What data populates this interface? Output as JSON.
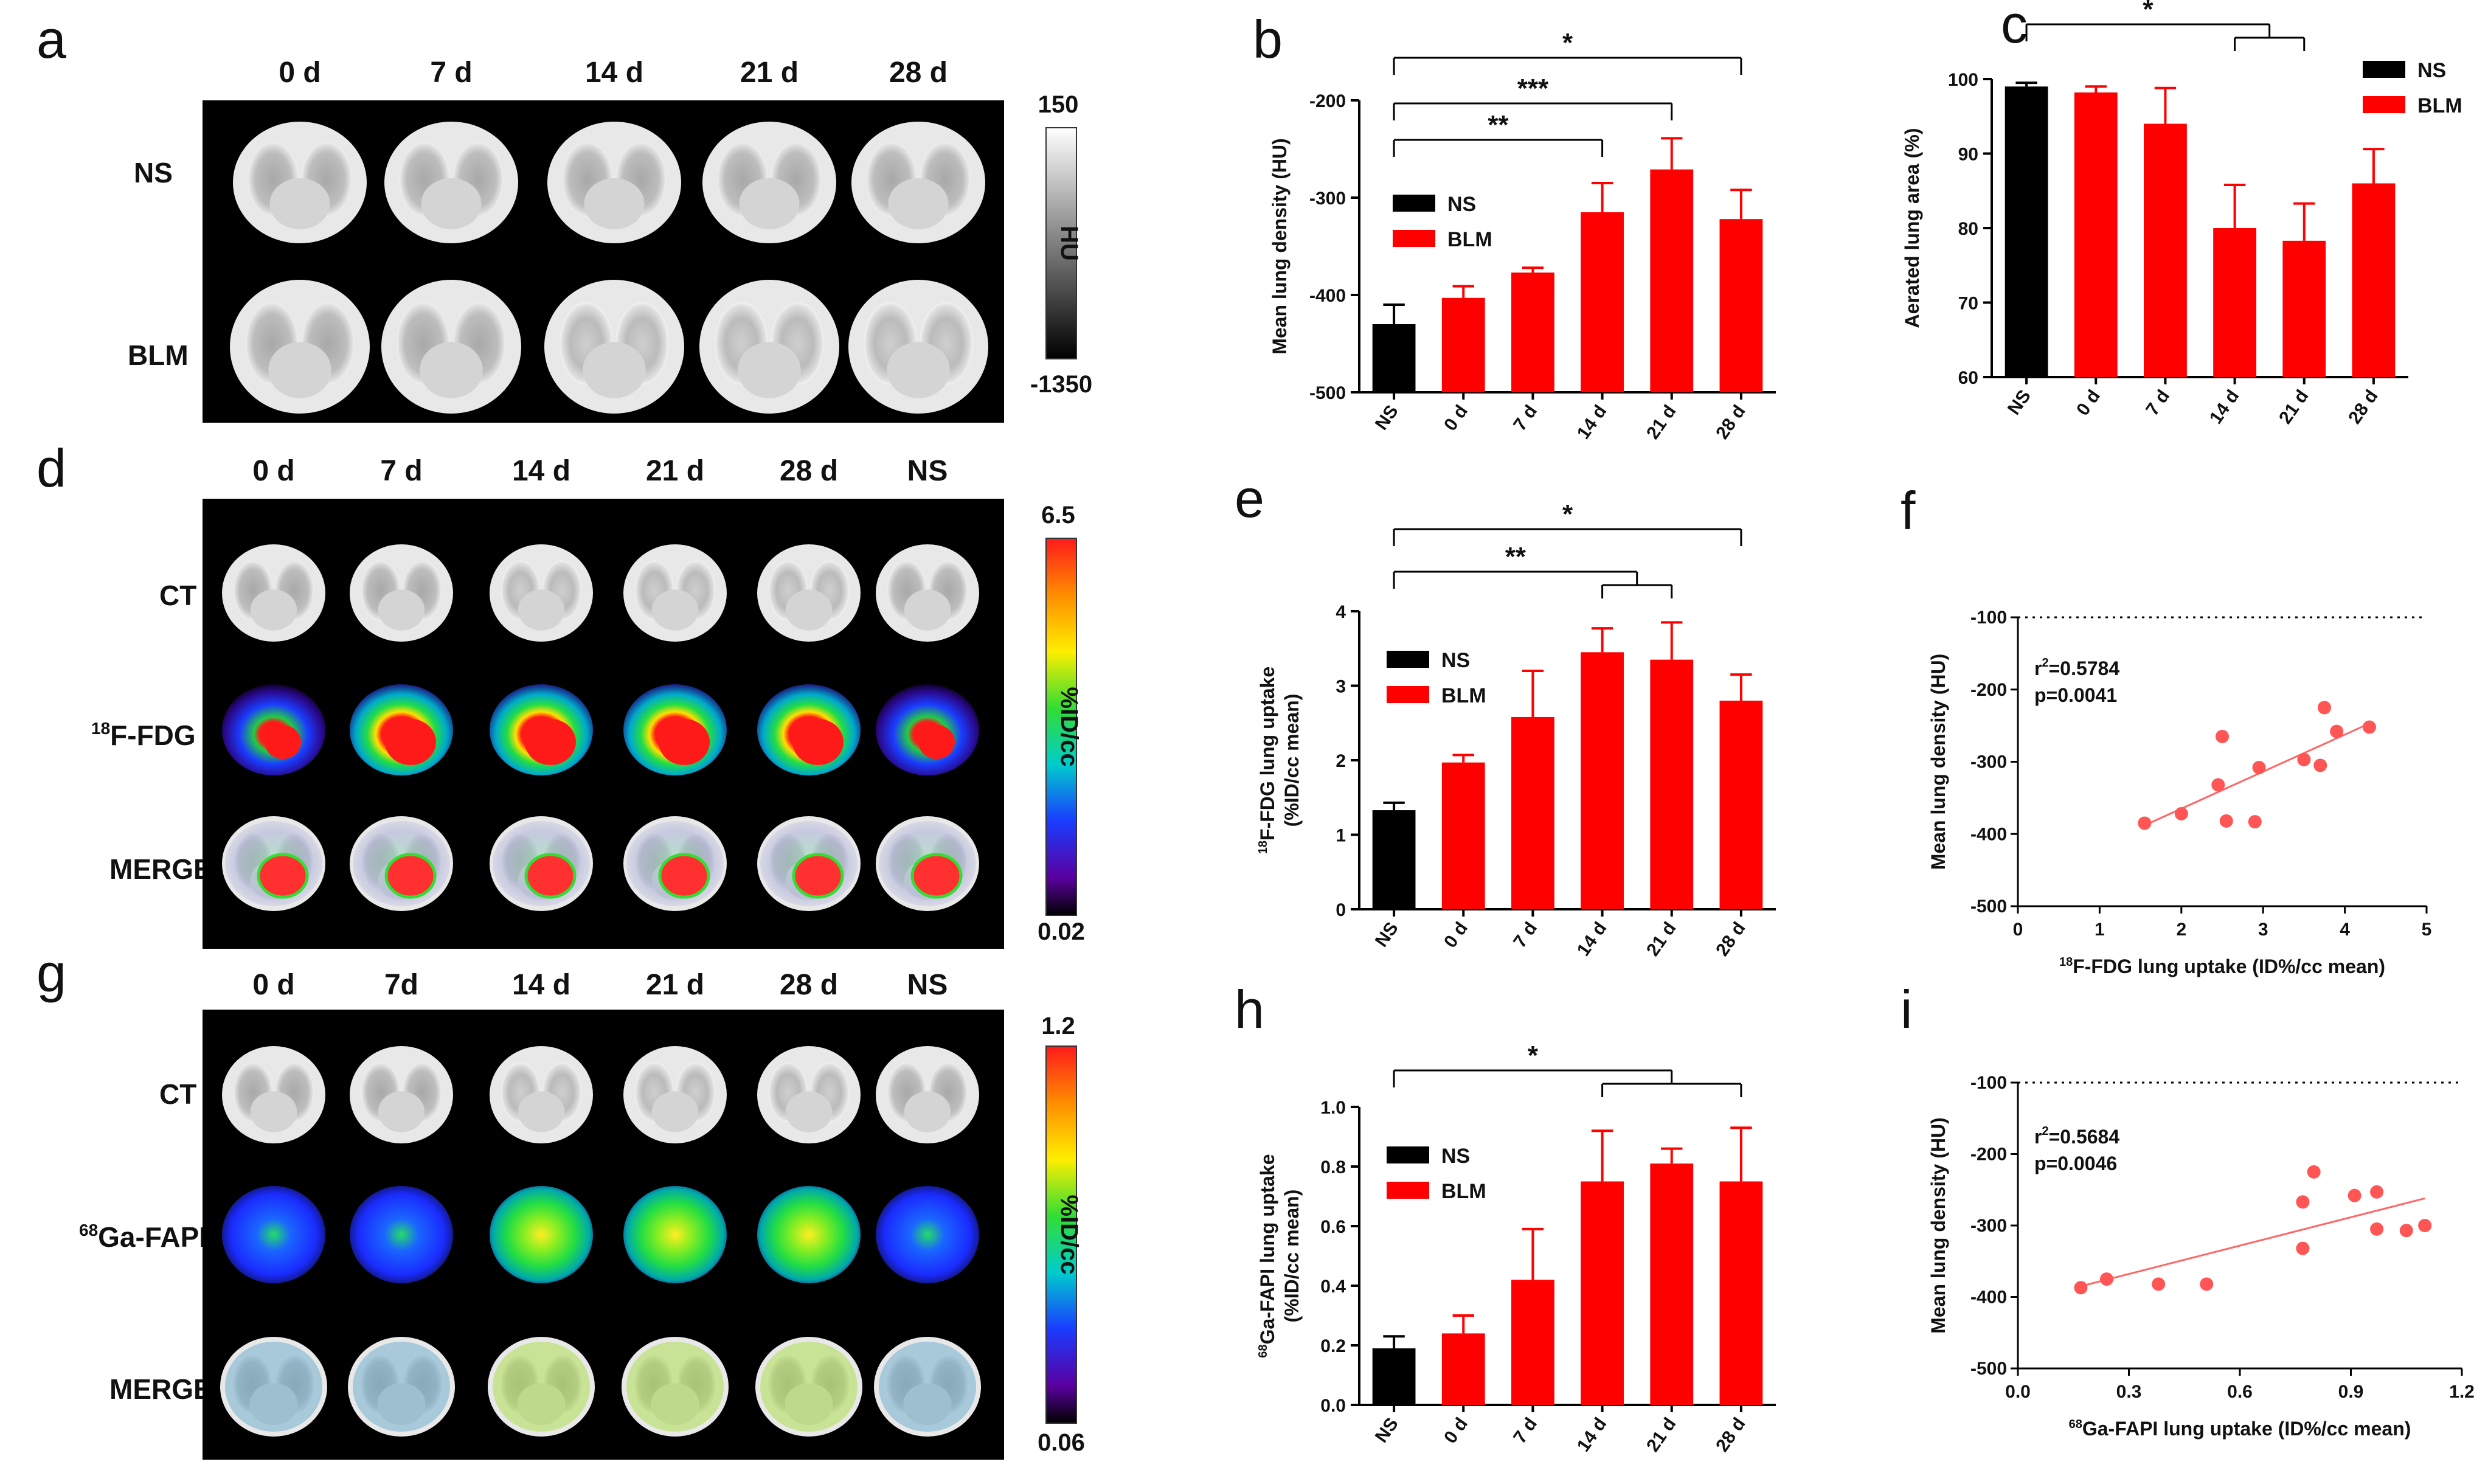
{
  "panel_letters": [
    "a",
    "b",
    "c",
    "d",
    "e",
    "f",
    "g",
    "h",
    "i"
  ],
  "colors": {
    "ns": "#000000",
    "blm": "#ff0000",
    "dot": "#ff5555",
    "fit": "#ff6666"
  },
  "panel_a": {
    "columns": [
      "0 d",
      "7 d",
      "14 d",
      "21 d",
      "28 d"
    ],
    "rows": [
      "NS",
      "BLM"
    ],
    "colorbar": {
      "max": "150",
      "min": "-1350",
      "unit": "HU"
    }
  },
  "panel_d": {
    "columns": [
      "0 d",
      "7 d",
      "14 d",
      "21 d",
      "28 d",
      "NS"
    ],
    "rows": [
      {
        "sup": "",
        "text": "CT"
      },
      {
        "sup": "18",
        "text": "F-FDG"
      },
      {
        "sup": "",
        "text": "MERGE"
      }
    ],
    "colorbar": {
      "max": "6.5",
      "min": "0.02",
      "unit": "%ID/cc"
    }
  },
  "panel_g": {
    "columns": [
      "0 d",
      "7d",
      "14 d",
      "21 d",
      "28 d",
      "NS"
    ],
    "rows": [
      {
        "sup": "",
        "text": "CT"
      },
      {
        "sup": "68",
        "text": "Ga-FAPI"
      },
      {
        "sup": "",
        "text": "MERGE"
      }
    ],
    "colorbar": {
      "max": "1.2",
      "min": "0.06",
      "unit": "%ID/cc"
    }
  },
  "chart_data": [
    {
      "id": "b",
      "type": "bar",
      "categories": [
        "NS",
        "0 d",
        "7 d",
        "14 d",
        "21 d",
        "28 d"
      ],
      "values": [
        -430,
        -403,
        -377,
        -315,
        -271,
        -322
      ],
      "errors": [
        20,
        12,
        5,
        30,
        32,
        30
      ],
      "groups": [
        "NS",
        "BLM",
        "BLM",
        "BLM",
        "BLM",
        "BLM"
      ],
      "ylabel": {
        "sup": "",
        "text": "Mean lung density (HU)",
        "sub": ""
      },
      "ylim": [
        -500,
        -200
      ],
      "yticks": [
        -500,
        -400,
        -300,
        -200
      ],
      "ytick_labels": [
        "-500",
        "-400",
        "-300",
        "-200"
      ],
      "legend": [
        "NS",
        "BLM"
      ],
      "significance": [
        {
          "label": "**",
          "from": 0,
          "to": 3
        },
        {
          "label": "***",
          "from": 0,
          "to": 4
        },
        {
          "label": "*",
          "from": 0,
          "to": 5
        }
      ]
    },
    {
      "id": "c",
      "type": "bar",
      "categories": [
        "NS",
        "0 d",
        "7 d",
        "14 d",
        "21 d",
        "28 d"
      ],
      "values": [
        99,
        98.2,
        94,
        80,
        78.3,
        86
      ],
      "errors": [
        0.5,
        0.8,
        4.8,
        5.8,
        5,
        4.6
      ],
      "groups": [
        "NS",
        "BLM",
        "BLM",
        "BLM",
        "BLM",
        "BLM"
      ],
      "ylabel": {
        "sup": "",
        "text": "Aerated lung  area (%)",
        "sub": ""
      },
      "ylim": [
        60,
        100
      ],
      "yticks": [
        60,
        70,
        80,
        90,
        100
      ],
      "ytick_labels": [
        "60",
        "70",
        "80",
        "90",
        "100"
      ],
      "legend": [
        "NS",
        "BLM"
      ],
      "significance": [
        {
          "label": "*",
          "from": 0,
          "to": 3,
          "to_end": 4
        }
      ]
    },
    {
      "id": "e",
      "type": "bar",
      "categories": [
        "NS",
        "0 d",
        "7 d",
        "14 d",
        "21 d",
        "28 d"
      ],
      "values": [
        1.33,
        1.97,
        2.58,
        3.45,
        3.35,
        2.8
      ],
      "errors": [
        0.1,
        0.1,
        0.62,
        0.32,
        0.5,
        0.35
      ],
      "groups": [
        "NS",
        "BLM",
        "BLM",
        "BLM",
        "BLM",
        "BLM"
      ],
      "ylabel": {
        "sup": "18",
        "text": "F-FDG lung uptake",
        "sub": "(%ID/cc mean)"
      },
      "ylim": [
        0,
        4
      ],
      "yticks": [
        0,
        1,
        2,
        3,
        4
      ],
      "ytick_labels": [
        "0",
        "1",
        "2",
        "3",
        "4"
      ],
      "legend": [
        "NS",
        "BLM"
      ],
      "significance": [
        {
          "label": "**",
          "from": 0,
          "to": 3,
          "to_end": 4
        },
        {
          "label": "*",
          "from": 0,
          "to": 5
        }
      ]
    },
    {
      "id": "h",
      "type": "bar",
      "categories": [
        "NS",
        "0 d",
        "7 d",
        "14 d",
        "21 d",
        "28 d"
      ],
      "values": [
        0.19,
        0.24,
        0.42,
        0.75,
        0.81,
        0.75
      ],
      "errors": [
        0.04,
        0.06,
        0.17,
        0.17,
        0.05,
        0.18
      ],
      "groups": [
        "NS",
        "BLM",
        "BLM",
        "BLM",
        "BLM",
        "BLM"
      ],
      "ylabel": {
        "sup": "68",
        "text": "Ga-FAPI lung uptake",
        "sub": "(%ID/cc mean)"
      },
      "ylim": [
        0,
        1.0
      ],
      "yticks": [
        0,
        0.2,
        0.4,
        0.6,
        0.8,
        1.0
      ],
      "ytick_labels": [
        "0.0",
        "0.2",
        "0.4",
        "0.6",
        "0.8",
        "1.0"
      ],
      "legend": [
        "NS",
        "BLM"
      ],
      "significance": [
        {
          "label": "*",
          "from": 0,
          "to": 3,
          "to_end": 5
        }
      ]
    },
    {
      "id": "f",
      "type": "scatter",
      "x": [
        1.55,
        2.0,
        2.45,
        2.5,
        2.55,
        2.9,
        2.95,
        3.5,
        3.7,
        3.75,
        3.9,
        4.3
      ],
      "y": [
        -385,
        -372,
        -332,
        -265,
        -382,
        -383,
        -308,
        -297,
        -305,
        -225,
        -258,
        -252
      ],
      "fit": {
        "x0": 1.55,
        "y0": -388,
        "x1": 4.3,
        "y1": -247
      },
      "xlim": [
        0,
        5
      ],
      "ylim": [
        -500,
        -100
      ],
      "xticks": [
        0,
        1,
        2,
        3,
        4,
        5
      ],
      "xtick_labels": [
        "0",
        "1",
        "2",
        "3",
        "4",
        "5"
      ],
      "yticks": [
        -500,
        -400,
        -300,
        -200,
        -100
      ],
      "ytick_labels": [
        "-500",
        "-400",
        "-300",
        "-200",
        "-100"
      ],
      "xlabel": {
        "sup": "18",
        "text": "F-FDG lung uptake (ID%/cc mean)"
      },
      "ylabel": "Mean lung density (HU)",
      "stats": {
        "r2_prefix": "r",
        "r2_sup": "2",
        "r2_value": "=0.5784",
        "p": "p=0.0041"
      }
    },
    {
      "id": "i",
      "type": "scatter",
      "x": [
        0.17,
        0.24,
        0.38,
        0.51,
        0.77,
        0.77,
        0.8,
        0.91,
        0.97,
        0.97,
        1.05,
        1.1
      ],
      "y": [
        -387,
        -375,
        -382,
        -382,
        -267,
        -332,
        -225,
        -258,
        -253,
        -305,
        -307,
        -300
      ],
      "fit": {
        "x0": 0.17,
        "y0": -385,
        "x1": 1.1,
        "y1": -262
      },
      "xlim": [
        0,
        1.2
      ],
      "ylim": [
        -500,
        -100
      ],
      "xticks": [
        0,
        0.3,
        0.6,
        0.9,
        1.2
      ],
      "xtick_labels": [
        "0.0",
        "0.3",
        "0.6",
        "0.9",
        "1.2"
      ],
      "yticks": [
        -500,
        -400,
        -300,
        -200,
        -100
      ],
      "ytick_labels": [
        "-500",
        "-400",
        "-300",
        "-200",
        "-100"
      ],
      "xlabel": {
        "sup": "68",
        "text": "Ga-FAPI lung uptake (ID%/cc mean)"
      },
      "ylabel": "Mean lung density (HU)",
      "stats": {
        "r2_prefix": "r",
        "r2_sup": "2",
        "r2_value": "=0.5684",
        "p": "p=0.0046"
      }
    }
  ]
}
